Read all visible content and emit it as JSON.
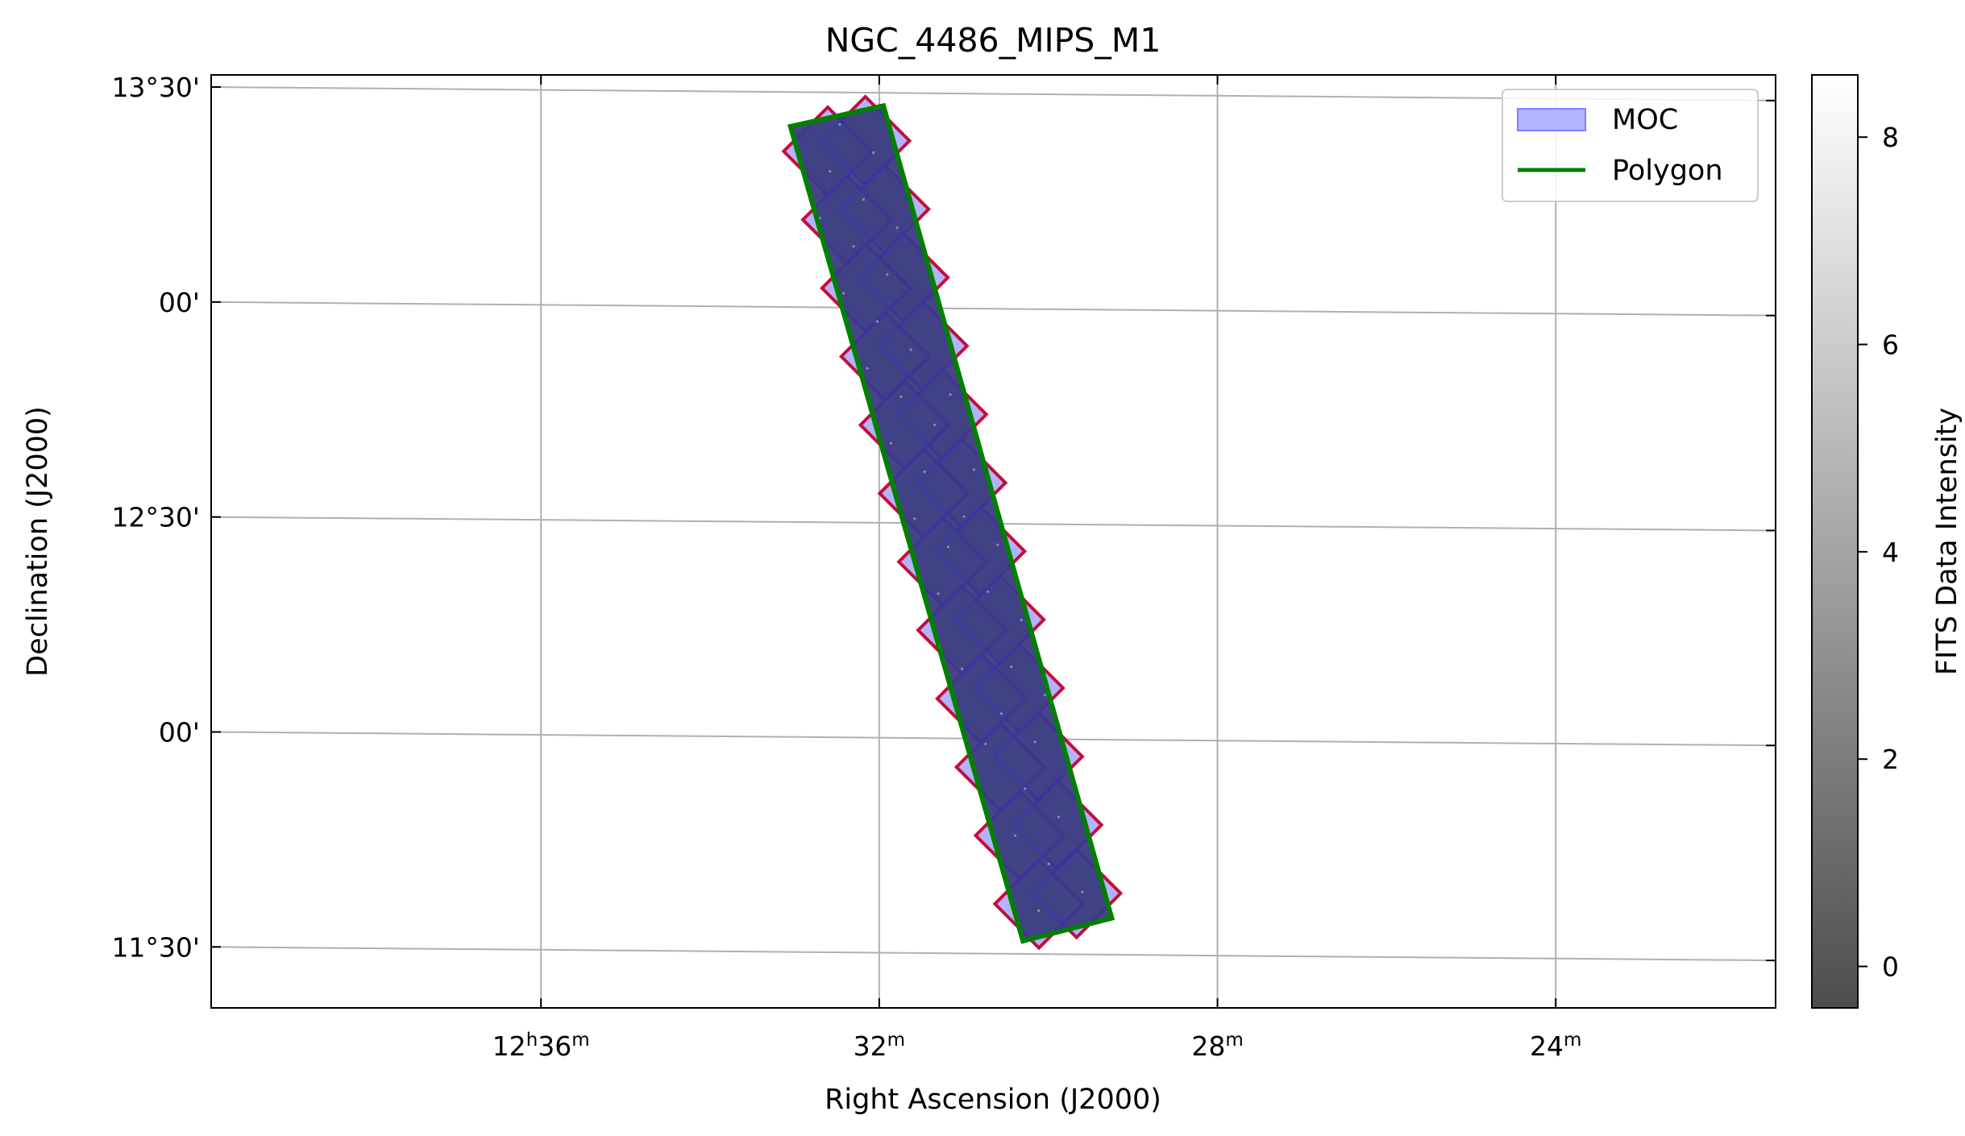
{
  "chart_data": {
    "type": "sky-image",
    "title": "NGC_4486_MIPS_M1",
    "xlabel": "Right Ascension (J2000)",
    "ylabel": "Declination (J2000)",
    "x_ticks": [
      {
        "ra_min": 36,
        "label_main": "12",
        "sup1": "h",
        "label_mid": "36",
        "sup2": "m"
      },
      {
        "ra_min": 32,
        "label_main": "",
        "sup1": "",
        "label_mid": "32",
        "sup2": "m"
      },
      {
        "ra_min": 28,
        "label_main": "",
        "sup1": "",
        "label_mid": "28",
        "sup2": "m"
      },
      {
        "ra_min": 24,
        "label_main": "",
        "sup1": "",
        "label_mid": "24",
        "sup2": "m"
      }
    ],
    "y_ticks": [
      {
        "dec": 13.5,
        "label": "13°30'"
      },
      {
        "dec": 13.0,
        "label": "00'"
      },
      {
        "dec": 12.5,
        "label": "12°30'"
      },
      {
        "dec": 12.0,
        "label": "00'"
      },
      {
        "dec": 11.5,
        "label": "11°30'"
      }
    ],
    "ra_range_min": [
      39.9,
      21.4
    ],
    "dec_range": [
      11.375,
      13.545
    ],
    "grid": true,
    "legend": {
      "placement": "top-right",
      "entries": [
        {
          "label": "MOC",
          "kind": "patch",
          "face": "#b3b3ff",
          "edge": "#8080ff"
        },
        {
          "label": "Polygon",
          "kind": "line",
          "color": "#008000"
        }
      ]
    },
    "polygon": {
      "name": "Polygon",
      "color": "#008000",
      "vertices_ra_dec": [
        [
          33.05,
          13.42
        ],
        [
          31.95,
          13.47
        ],
        [
          29.25,
          11.585
        ],
        [
          30.3,
          11.53
        ]
      ]
    },
    "moc": {
      "name": "MOC",
      "fill": "#b3b3ff",
      "edge": "#ff0000",
      "strip_center_start": [
        32.5,
        13.455
      ],
      "strip_center_end": [
        29.775,
        11.55
      ],
      "half_width_cells": 0.5,
      "cells_along": 12
    },
    "image": {
      "fill": "#3b3b80",
      "value_range": [
        -0.4,
        8.6
      ]
    },
    "colorbar": {
      "label": "FITS Data Intensity",
      "cmap": "gray",
      "vmin": -0.4,
      "vmax": 8.6,
      "ticks": [
        0,
        2,
        4,
        6,
        8
      ],
      "tick_labels": [
        "0",
        "2",
        "4",
        "6",
        "8"
      ]
    }
  }
}
